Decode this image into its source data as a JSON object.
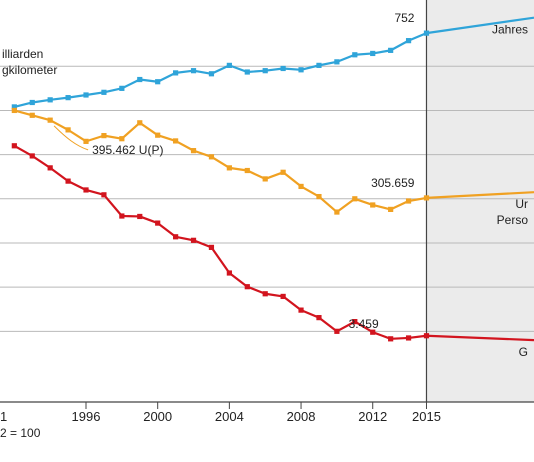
{
  "chart_data": {
    "type": "line",
    "xlim": [
      1991.2,
      2021
    ],
    "ylim": [
      34,
      125
    ],
    "x_ticks": [
      "1996",
      "2000",
      "2004",
      "2008",
      "2012",
      "2015"
    ],
    "x_tick_partial": "1",
    "baseline_note": "2 = 100",
    "gridlines_y": [
      50,
      60,
      70,
      80,
      90,
      100,
      110
    ],
    "projection_from": 2015,
    "projection_shading": "#ebebeb",
    "series": [
      {
        "key": "vehicle_km",
        "color": "#2fa4d9",
        "label_lines": [
          "illiarden",
          "gkilometer"
        ],
        "end_label_lines": [
          "Jahres"
        ],
        "x": [
          1992,
          1993,
          1994,
          1995,
          1996,
          1997,
          1998,
          1999,
          2000,
          2001,
          2002,
          2003,
          2004,
          2005,
          2006,
          2007,
          2008,
          2009,
          2010,
          2011,
          2012,
          2013,
          2014,
          2015
        ],
        "y": [
          100.8,
          101.8,
          102.4,
          102.9,
          103.5,
          104.1,
          105.0,
          107.0,
          106.5,
          108.5,
          109.0,
          108.3,
          110.2,
          108.7,
          109.0,
          109.5,
          109.2,
          110.2,
          111.0,
          112.6,
          112.9,
          113.6,
          115.8,
          117.5
        ],
        "projection_x": [
          2015,
          2021
        ],
        "projection_y": [
          117.5,
          121
        ],
        "annotation": {
          "x": 2015,
          "text": "752"
        }
      },
      {
        "key": "injured",
        "color": "#f0a122",
        "label_lines": [],
        "end_label_lines": [
          "Ur",
          "Perso"
        ],
        "x": [
          1992,
          1993,
          1994,
          1995,
          1996,
          1997,
          1998,
          1999,
          2000,
          2001,
          2002,
          2003,
          2004,
          2005,
          2006,
          2007,
          2008,
          2009,
          2010,
          2011,
          2012,
          2013,
          2014,
          2015
        ],
        "y": [
          100,
          98.9,
          97.8,
          95.6,
          93.0,
          94.3,
          93.6,
          97.2,
          94.4,
          93.1,
          90.9,
          89.5,
          87.0,
          86.4,
          84.5,
          86.0,
          82.8,
          80.5,
          77.0,
          80.0,
          78.6,
          77.6,
          79.5,
          80.2
        ],
        "projection_x": [
          2015,
          2021
        ],
        "projection_y": [
          80.2,
          81.5
        ],
        "annotation": {
          "x": 2015,
          "text": "305.659"
        },
        "callout": {
          "x": 1995,
          "text": "395.462 U(P)"
        }
      },
      {
        "key": "deaths",
        "color": "#d2141e",
        "label_lines": [],
        "end_label_lines": [
          "G"
        ],
        "x": [
          1992,
          1993,
          1994,
          1995,
          1996,
          1997,
          1998,
          1999,
          2000,
          2001,
          2002,
          2003,
          2004,
          2005,
          2006,
          2007,
          2008,
          2009,
          2010,
          2011,
          2012,
          2013,
          2014,
          2015
        ],
        "y": [
          92,
          89.7,
          87.0,
          84.0,
          82.0,
          80.9,
          76.1,
          76.0,
          74.5,
          71.4,
          70.6,
          69.0,
          63.2,
          60.1,
          58.5,
          57.9,
          54.8,
          53.1,
          50.0,
          52.2,
          49.8,
          48.3,
          48.5,
          49.0
        ],
        "projection_x": [
          2015,
          2021
        ],
        "projection_y": [
          49.0,
          48.0
        ],
        "annotation": {
          "x": 2013,
          "text": "3.459"
        }
      }
    ]
  }
}
